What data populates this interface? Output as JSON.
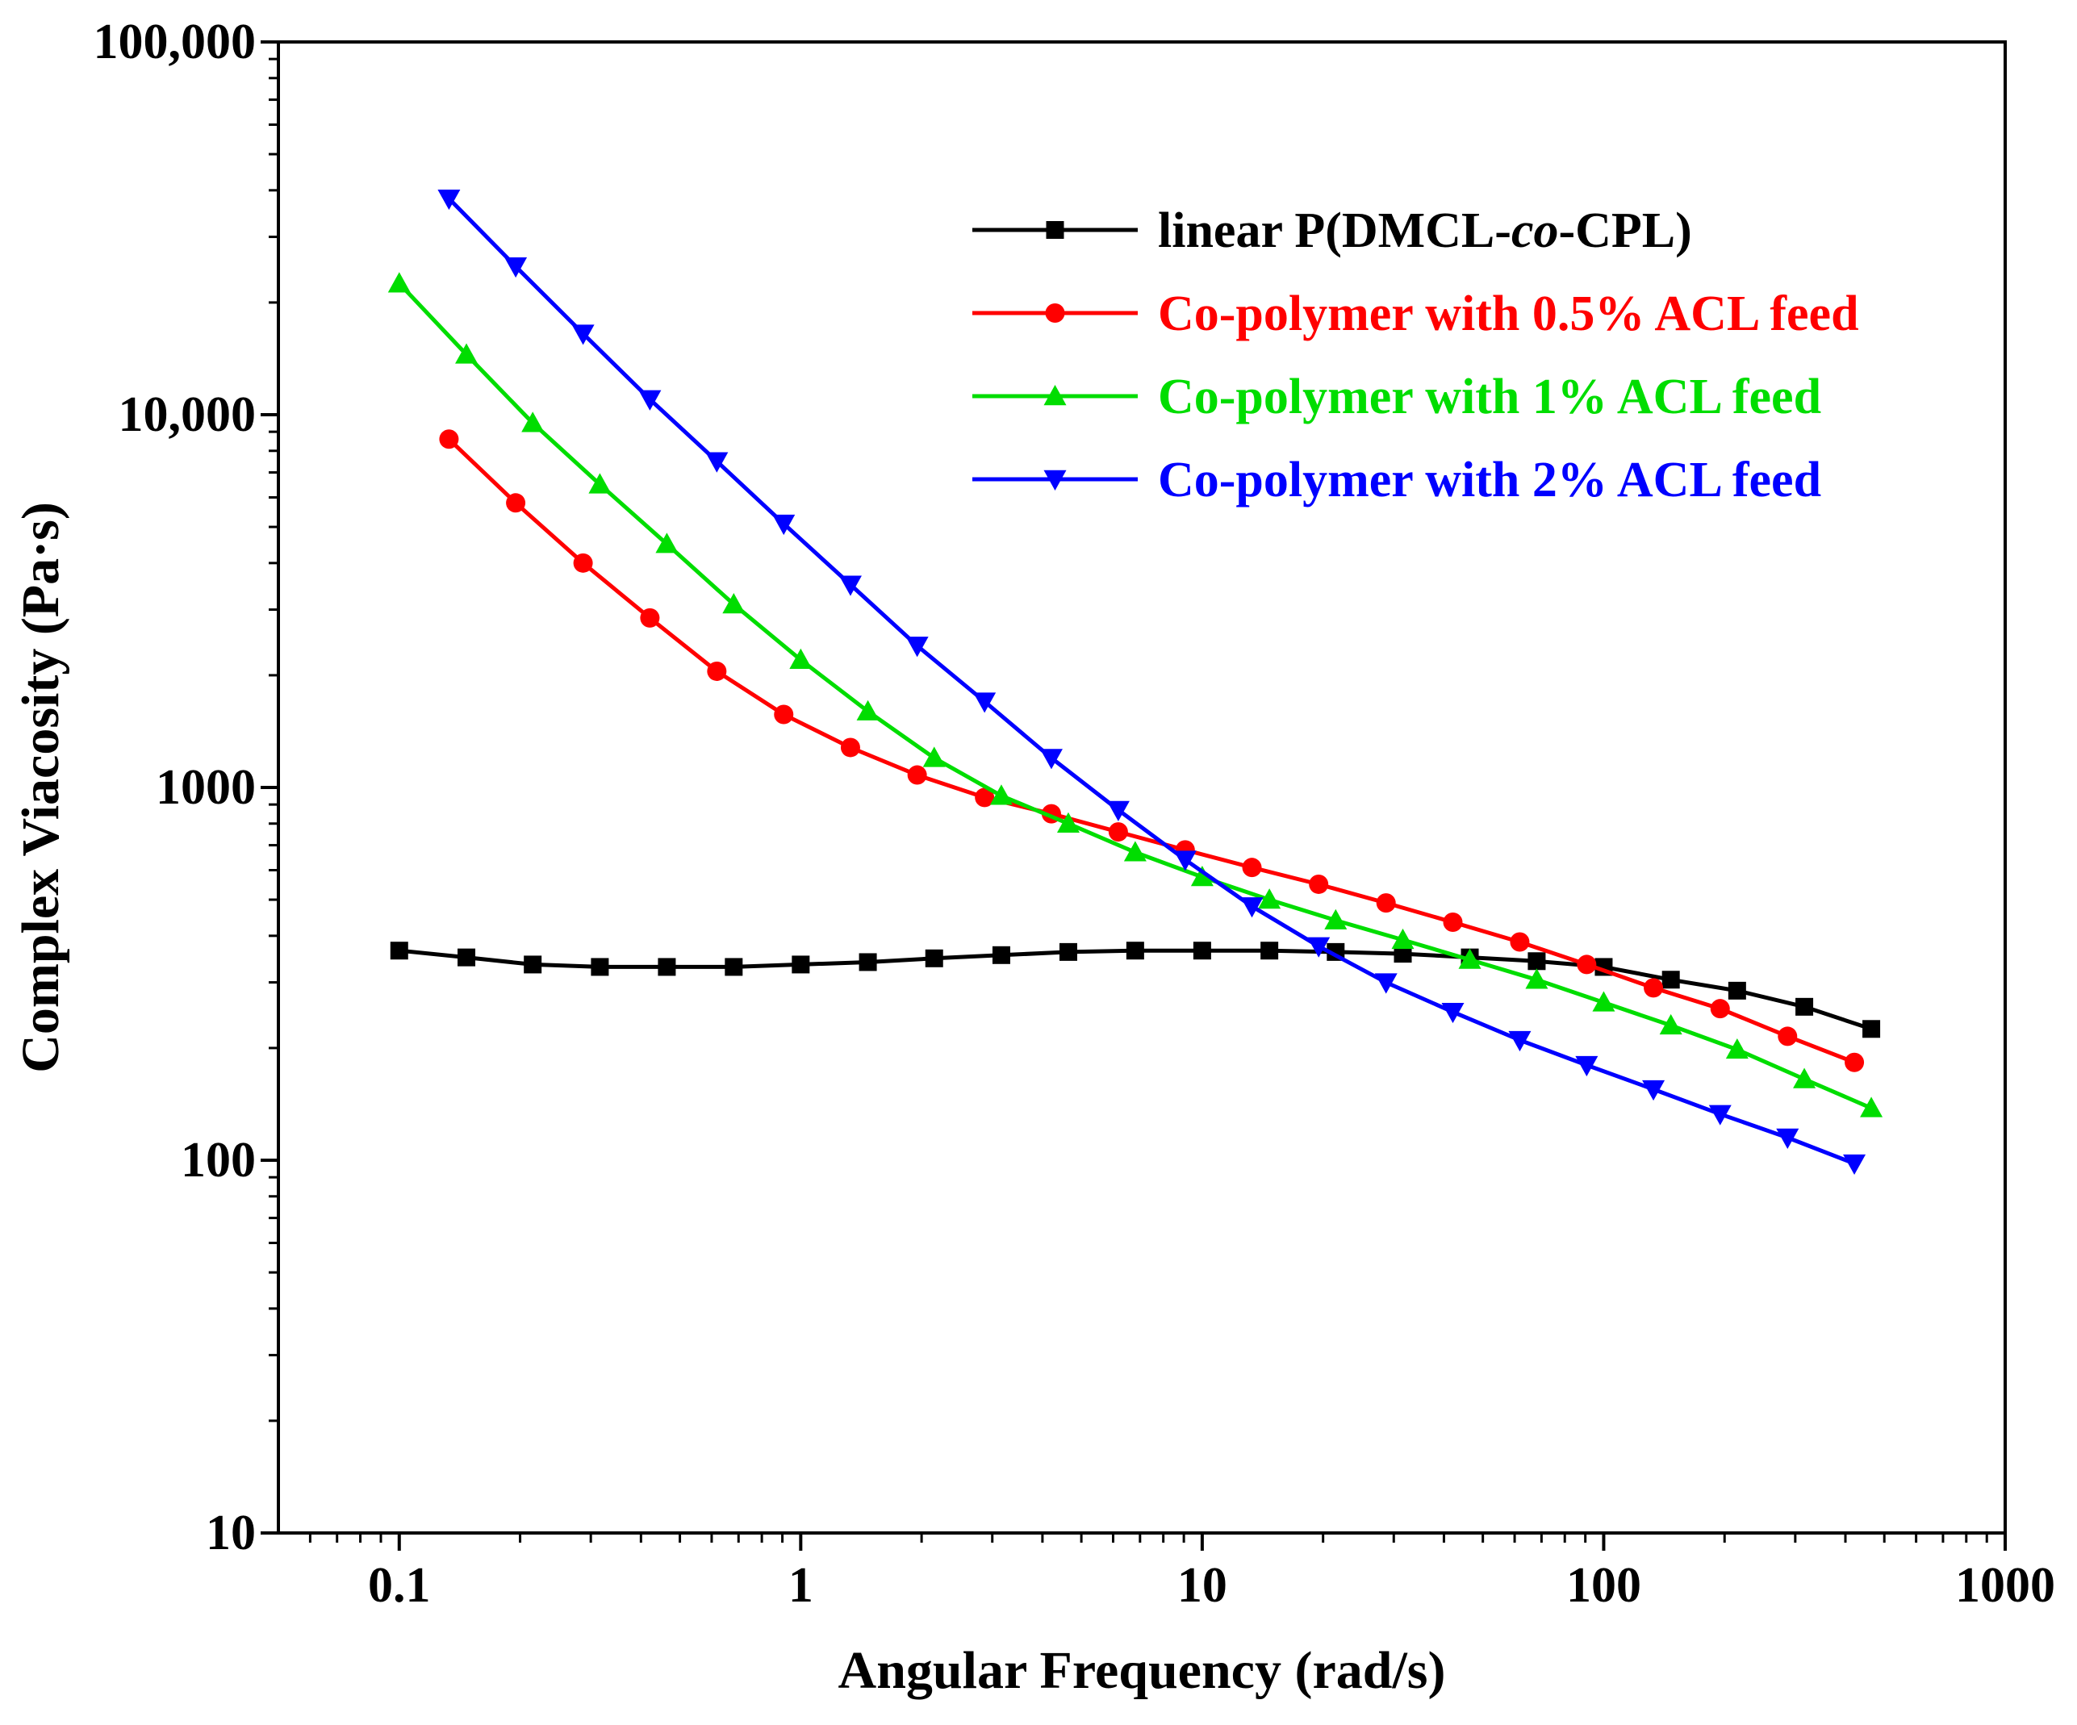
{
  "chart_data": {
    "type": "line",
    "title": "",
    "xlabel": "Angular Frequency (rad/s)",
    "ylabel": "Complex Viacosity (Pa·s)",
    "x_scale": "log",
    "y_scale": "log",
    "xlim": [
      0.05,
      1000
    ],
    "ylim": [
      10,
      100000
    ],
    "x_ticks": [
      {
        "value": 0.1,
        "label": "0.1"
      },
      {
        "value": 1,
        "label": "1"
      },
      {
        "value": 10,
        "label": "10"
      },
      {
        "value": 100,
        "label": "100"
      },
      {
        "value": 1000,
        "label": "1000"
      }
    ],
    "y_ticks": [
      {
        "value": 10,
        "label": "10"
      },
      {
        "value": 100,
        "label": "100"
      },
      {
        "value": 1000,
        "label": "1000"
      },
      {
        "value": 10000,
        "label": "10,000"
      },
      {
        "value": 100000,
        "label": "100,000"
      }
    ],
    "grid": false,
    "legend_position": "top-right",
    "series": [
      {
        "name": "linear P(DMCL-",
        "name_italic": "co",
        "name_suffix": "-CPL)",
        "color": "#000000",
        "marker": "square",
        "x": [
          0.1,
          0.147,
          0.215,
          0.316,
          0.464,
          0.681,
          1.0,
          1.47,
          2.15,
          3.16,
          4.64,
          6.81,
          10.0,
          14.7,
          21.5,
          31.6,
          46.4,
          68.1,
          100,
          147,
          215,
          316,
          464
        ],
        "y": [
          365,
          350,
          335,
          330,
          330,
          330,
          335,
          340,
          348,
          355,
          362,
          365,
          365,
          365,
          362,
          358,
          350,
          342,
          330,
          305,
          285,
          258,
          225
        ]
      },
      {
        "name": "Co-polymer with 0.5% ACL feed",
        "color": "#ff0000",
        "marker": "circle",
        "x": [
          0.133,
          0.195,
          0.287,
          0.421,
          0.618,
          0.907,
          1.33,
          1.95,
          2.87,
          4.21,
          6.18,
          9.07,
          13.3,
          19.5,
          28.7,
          42.1,
          61.8,
          90.7,
          133,
          195,
          287,
          421
        ],
        "y": [
          8600,
          5800,
          4000,
          2850,
          2050,
          1570,
          1280,
          1080,
          940,
          850,
          760,
          680,
          610,
          550,
          490,
          435,
          385,
          335,
          290,
          255,
          215,
          183
        ]
      },
      {
        "name": "Co-polymer with 1% ACL feed",
        "color": "#00dd00",
        "marker": "triangle-up",
        "x": [
          0.1,
          0.147,
          0.215,
          0.316,
          0.464,
          0.681,
          1.0,
          1.47,
          2.15,
          3.16,
          4.64,
          6.81,
          10.0,
          14.7,
          21.5,
          31.6,
          46.4,
          68.1,
          100,
          147,
          215,
          316,
          464
        ],
        "y": [
          22500,
          14500,
          9500,
          6500,
          4500,
          3100,
          2200,
          1600,
          1200,
          950,
          800,
          670,
          575,
          500,
          440,
          390,
          345,
          305,
          265,
          230,
          198,
          165,
          138
        ]
      },
      {
        "name": "Co-polymer with 2% ACL feed",
        "color": "#0000ff",
        "marker": "triangle-down",
        "x": [
          0.133,
          0.195,
          0.287,
          0.421,
          0.618,
          0.907,
          1.33,
          1.95,
          2.87,
          4.21,
          6.18,
          9.07,
          13.3,
          19.5,
          28.7,
          42.1,
          61.8,
          90.7,
          133,
          195,
          287,
          421
        ],
        "y": [
          38000,
          25000,
          16500,
          11000,
          7500,
          5100,
          3500,
          2400,
          1700,
          1200,
          870,
          640,
          480,
          375,
          300,
          250,
          210,
          180,
          155,
          133,
          115,
          98
        ]
      }
    ]
  }
}
